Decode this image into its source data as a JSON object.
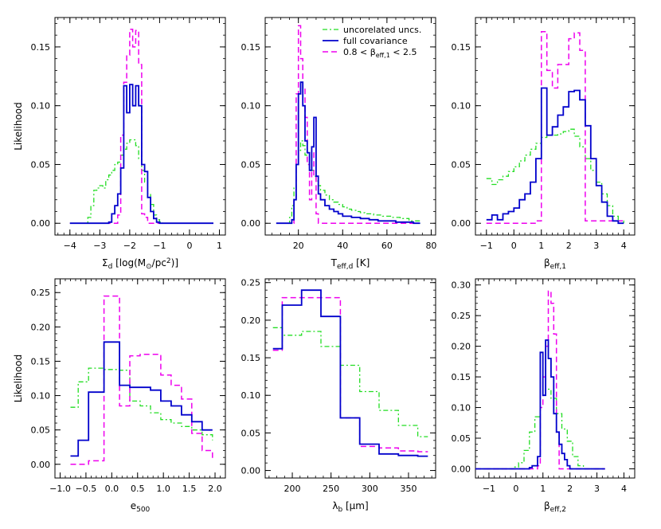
{
  "colors": {
    "uncorrelated": "#22dd22",
    "full": "#0000cc",
    "restricted": "#ee00ee"
  },
  "legend": {
    "entries": [
      {
        "key": "uncorrelated",
        "label": "uncorelated uncs."
      },
      {
        "key": "full",
        "label": "full covariance"
      },
      {
        "key": "restricted",
        "label": "0.8 < β_eff,1 < 2.5"
      }
    ]
  },
  "chart_data": [
    {
      "type": "line",
      "panel": "Sigma_d",
      "xlabel": "Σd [log(M⊙/pc²)]",
      "ylabel": "Likelihood",
      "xlim": [
        -4.5,
        1.2
      ],
      "ylim": [
        -0.01,
        0.175
      ],
      "xticks": [
        -4,
        -3,
        -2,
        -1,
        0,
        1
      ],
      "yticks": [
        0.0,
        0.05,
        0.1,
        0.15
      ],
      "ytick_labels": [
        "0.00",
        "0.05",
        "0.10",
        "0.15"
      ],
      "series": [
        {
          "key": "uncorrelated",
          "x": [
            -4.0,
            -3.4,
            -3.3,
            -3.2,
            -3.1,
            -3.0,
            -2.9,
            -2.8,
            -2.7,
            -2.6,
            -2.5,
            -2.4,
            -2.3,
            -2.2,
            -2.1,
            -2.0,
            -1.9,
            -1.8,
            -1.7,
            -1.6,
            -1.5,
            -1.4,
            -1.3,
            -1.2,
            -1.1,
            -1.0,
            -0.9,
            0.8
          ],
          "y": [
            0.0,
            0.005,
            0.015,
            0.028,
            0.03,
            0.032,
            0.03,
            0.037,
            0.041,
            0.045,
            0.05,
            0.052,
            0.058,
            0.063,
            0.068,
            0.071,
            0.071,
            0.066,
            0.055,
            0.045,
            0.035,
            0.025,
            0.016,
            0.007,
            0.003,
            0.001,
            0.0,
            0.0
          ]
        },
        {
          "key": "full",
          "x": [
            -4.0,
            -2.7,
            -2.6,
            -2.5,
            -2.4,
            -2.3,
            -2.2,
            -2.1,
            -2.0,
            -1.9,
            -1.8,
            -1.7,
            -1.6,
            -1.5,
            -1.4,
            -1.3,
            -1.2,
            -1.1,
            -1.0,
            0.8
          ],
          "y": [
            0.0,
            0.001,
            0.008,
            0.015,
            0.025,
            0.047,
            0.117,
            0.094,
            0.118,
            0.1,
            0.117,
            0.1,
            0.05,
            0.044,
            0.022,
            0.01,
            0.004,
            0.001,
            0.0,
            0.0
          ]
        },
        {
          "key": "restricted",
          "x": [
            -4.0,
            -2.4,
            -2.3,
            -2.2,
            -2.1,
            -2.0,
            -1.9,
            -1.8,
            -1.7,
            -1.6,
            -1.5,
            -1.4,
            0.8
          ],
          "y": [
            0.0,
            0.007,
            0.075,
            0.12,
            0.143,
            0.165,
            0.15,
            0.164,
            0.135,
            0.008,
            0.005,
            0.0,
            0.0
          ]
        }
      ]
    },
    {
      "type": "line",
      "panel": "T_eff_d",
      "xlabel": "Teff,d [K]",
      "ylabel": "",
      "xlim": [
        5,
        82
      ],
      "ylim": [
        -0.01,
        0.175
      ],
      "xticks": [
        20,
        40,
        60,
        80
      ],
      "yticks": [
        0.0,
        0.05,
        0.1,
        0.15
      ],
      "ytick_labels": [
        "0.00",
        "0.05",
        "0.10",
        "0.15"
      ],
      "series": [
        {
          "key": "uncorrelated",
          "x": [
            10,
            16,
            17,
            18,
            19,
            20,
            21,
            22,
            23,
            24,
            25,
            26,
            27,
            28,
            29,
            30,
            32,
            34,
            36,
            38,
            40,
            42,
            44,
            46,
            48,
            50,
            54,
            58,
            62,
            66,
            70,
            75
          ],
          "y": [
            0.0,
            0.005,
            0.015,
            0.03,
            0.05,
            0.062,
            0.07,
            0.066,
            0.058,
            0.055,
            0.05,
            0.045,
            0.04,
            0.036,
            0.032,
            0.028,
            0.024,
            0.02,
            0.018,
            0.016,
            0.014,
            0.012,
            0.011,
            0.01,
            0.009,
            0.008,
            0.007,
            0.006,
            0.005,
            0.004,
            0.002,
            0.0
          ]
        },
        {
          "key": "full",
          "x": [
            10,
            17,
            18,
            19,
            20,
            21,
            22,
            23,
            24,
            25,
            26,
            27,
            28,
            29,
            30,
            32,
            34,
            36,
            38,
            40,
            44,
            48,
            52,
            56,
            60,
            64,
            68,
            72,
            75
          ],
          "y": [
            0.0,
            0.003,
            0.02,
            0.05,
            0.11,
            0.12,
            0.1,
            0.07,
            0.06,
            0.045,
            0.065,
            0.09,
            0.04,
            0.025,
            0.02,
            0.015,
            0.012,
            0.01,
            0.008,
            0.006,
            0.005,
            0.004,
            0.003,
            0.002,
            0.002,
            0.001,
            0.001,
            0.0,
            0.0
          ]
        },
        {
          "key": "restricted",
          "x": [
            10,
            18,
            19,
            20,
            21,
            22,
            23,
            24,
            25,
            26,
            27,
            28,
            29,
            75
          ],
          "y": [
            0.0,
            0.02,
            0.11,
            0.168,
            0.14,
            0.115,
            0.09,
            0.05,
            0.02,
            0.06,
            0.04,
            0.008,
            0.0,
            0.0
          ]
        }
      ]
    },
    {
      "type": "line",
      "panel": "beta_eff_1",
      "xlabel": "βeff,1",
      "ylabel": "",
      "xlim": [
        -1.4,
        4.4
      ],
      "ylim": [
        -0.01,
        0.175
      ],
      "xticks": [
        -1,
        0,
        1,
        2,
        3,
        4
      ],
      "yticks": [
        0.0,
        0.05,
        0.1,
        0.15
      ],
      "ytick_labels": [
        "0.00",
        "0.05",
        "0.10",
        "0.15"
      ],
      "series": [
        {
          "key": "uncorrelated",
          "x": [
            -1.0,
            -0.8,
            -0.6,
            -0.4,
            -0.2,
            0.0,
            0.2,
            0.4,
            0.6,
            0.8,
            1.0,
            1.2,
            1.4,
            1.6,
            1.8,
            2.0,
            2.2,
            2.4,
            2.6,
            2.8,
            3.0,
            3.2,
            3.4,
            3.6,
            3.8,
            4.0
          ],
          "y": [
            0.038,
            0.033,
            0.037,
            0.04,
            0.044,
            0.048,
            0.053,
            0.058,
            0.063,
            0.068,
            0.073,
            0.075,
            0.075,
            0.076,
            0.078,
            0.08,
            0.074,
            0.065,
            0.055,
            0.045,
            0.035,
            0.025,
            0.015,
            0.006,
            0.002,
            0.0
          ]
        },
        {
          "key": "full",
          "x": [
            -1.0,
            -0.8,
            -0.6,
            -0.4,
            -0.2,
            0.0,
            0.2,
            0.4,
            0.6,
            0.8,
            1.0,
            1.2,
            1.4,
            1.6,
            1.8,
            2.0,
            2.2,
            2.4,
            2.6,
            2.8,
            3.0,
            3.2,
            3.4,
            3.6,
            3.8,
            4.0
          ],
          "y": [
            0.003,
            0.007,
            0.003,
            0.008,
            0.01,
            0.013,
            0.02,
            0.025,
            0.035,
            0.055,
            0.115,
            0.075,
            0.082,
            0.092,
            0.099,
            0.112,
            0.113,
            0.105,
            0.083,
            0.055,
            0.032,
            0.018,
            0.006,
            0.002,
            0.0,
            0.0
          ]
        },
        {
          "key": "restricted",
          "x": [
            -1.0,
            0.6,
            0.8,
            1.0,
            1.2,
            1.4,
            1.6,
            1.8,
            2.0,
            2.2,
            2.4,
            2.6,
            4.0
          ],
          "y": [
            0.0,
            0.0,
            0.002,
            0.163,
            0.13,
            0.115,
            0.135,
            0.135,
            0.157,
            0.162,
            0.147,
            0.002,
            0.0
          ]
        }
      ]
    },
    {
      "type": "line",
      "panel": "e_500",
      "xlabel": "e500",
      "ylabel": "Likelihood",
      "xlim": [
        -1.1,
        2.2
      ],
      "ylim": [
        -0.02,
        0.27
      ],
      "xticks": [
        -1.0,
        -0.5,
        0.0,
        0.5,
        1.0,
        1.5,
        2.0
      ],
      "xtick_labels": [
        "−1.0",
        "−0.5",
        "0.0",
        "0.5",
        "1.0",
        "1.5",
        "2.0"
      ],
      "yticks": [
        0.0,
        0.05,
        0.1,
        0.15,
        0.2,
        0.25
      ],
      "ytick_labels": [
        "0.00",
        "0.05",
        "0.10",
        "0.15",
        "0.20",
        "0.25"
      ],
      "series": [
        {
          "key": "uncorrelated",
          "x": [
            -0.8,
            -0.65,
            -0.45,
            -0.15,
            0.15,
            0.35,
            0.55,
            0.75,
            0.95,
            1.15,
            1.35,
            1.55,
            1.75,
            1.95
          ],
          "y": [
            0.083,
            0.12,
            0.14,
            0.138,
            0.137,
            0.092,
            0.085,
            0.075,
            0.065,
            0.06,
            0.055,
            0.05,
            0.043,
            0.035
          ]
        },
        {
          "key": "full",
          "x": [
            -0.8,
            -0.65,
            -0.45,
            -0.15,
            0.15,
            0.35,
            0.55,
            0.75,
            0.95,
            1.15,
            1.35,
            1.55,
            1.75,
            1.95
          ],
          "y": [
            0.012,
            0.035,
            0.105,
            0.178,
            0.115,
            0.112,
            0.112,
            0.108,
            0.092,
            0.085,
            0.072,
            0.062,
            0.05,
            0.05
          ]
        },
        {
          "key": "restricted",
          "x": [
            -0.8,
            -0.65,
            -0.45,
            -0.15,
            0.15,
            0.35,
            0.55,
            0.75,
            0.95,
            1.15,
            1.35,
            1.55,
            1.75,
            1.95
          ],
          "y": [
            0.0,
            0.0,
            0.005,
            0.245,
            0.085,
            0.158,
            0.16,
            0.16,
            0.13,
            0.115,
            0.095,
            0.045,
            0.02,
            0.008
          ]
        }
      ]
    },
    {
      "type": "line",
      "panel": "lambda_b",
      "xlabel": "λb [μm]",
      "ylabel": "",
      "xlim": [
        165,
        385
      ],
      "ylim": [
        -0.01,
        0.255
      ],
      "xticks": [
        200,
        250,
        300,
        350
      ],
      "yticks": [
        0.0,
        0.05,
        0.1,
        0.15,
        0.2,
        0.25
      ],
      "ytick_labels": [
        "0.00",
        "0.05",
        "0.10",
        "0.15",
        "0.20",
        "0.25"
      ],
      "series": [
        {
          "key": "uncorrelated",
          "x": [
            175,
            187,
            212,
            237,
            262,
            287,
            312,
            337,
            362,
            375
          ],
          "y": [
            0.19,
            0.18,
            0.185,
            0.165,
            0.14,
            0.105,
            0.08,
            0.06,
            0.045,
            0.045
          ]
        },
        {
          "key": "full",
          "x": [
            175,
            187,
            212,
            237,
            262,
            287,
            312,
            337,
            362,
            375
          ],
          "y": [
            0.162,
            0.22,
            0.24,
            0.205,
            0.07,
            0.035,
            0.022,
            0.02,
            0.019,
            0.019
          ]
        },
        {
          "key": "restricted",
          "x": [
            175,
            187,
            212,
            237,
            262,
            287,
            312,
            337,
            362,
            375
          ],
          "y": [
            0.16,
            0.23,
            0.23,
            0.23,
            0.07,
            0.032,
            0.03,
            0.026,
            0.025,
            0.025
          ]
        }
      ]
    },
    {
      "type": "line",
      "panel": "beta_eff_2",
      "xlabel": "βeff,2",
      "ylabel": "",
      "xlim": [
        -1.5,
        4.4
      ],
      "ylim": [
        -0.015,
        0.31
      ],
      "xticks": [
        -1,
        0,
        1,
        2,
        3,
        4
      ],
      "yticks": [
        0.0,
        0.05,
        0.1,
        0.15,
        0.2,
        0.25,
        0.3
      ],
      "ytick_labels": [
        "0.00",
        "0.05",
        "0.10",
        "0.15",
        "0.20",
        "0.25",
        "0.30"
      ],
      "series": [
        {
          "key": "uncorrelated",
          "x": [
            -1.5,
            -0.1,
            0.1,
            0.3,
            0.5,
            0.7,
            0.9,
            1.1,
            1.3,
            1.5,
            1.7,
            1.9,
            2.1,
            2.3,
            2.5,
            3.3
          ],
          "y": [
            0.0,
            0.003,
            0.01,
            0.03,
            0.06,
            0.085,
            0.12,
            0.13,
            0.115,
            0.09,
            0.065,
            0.045,
            0.02,
            0.005,
            0.0,
            0.0
          ]
        },
        {
          "key": "full",
          "x": [
            -1.5,
            0.5,
            0.6,
            0.8,
            0.9,
            1.0,
            1.1,
            1.2,
            1.3,
            1.4,
            1.5,
            1.6,
            1.7,
            1.8,
            1.9,
            2.0,
            3.3
          ],
          "y": [
            0.0,
            0.002,
            0.005,
            0.02,
            0.19,
            0.12,
            0.21,
            0.18,
            0.15,
            0.09,
            0.06,
            0.04,
            0.025,
            0.015,
            0.005,
            0.0,
            0.0
          ]
        },
        {
          "key": "restricted",
          "x": [
            -1.5,
            0.6,
            0.8,
            0.9,
            1.0,
            1.1,
            1.2,
            1.3,
            1.4,
            1.5,
            1.6,
            3.3
          ],
          "y": [
            0.0,
            0.0,
            0.005,
            0.1,
            0.15,
            0.2,
            0.29,
            0.27,
            0.22,
            0.06,
            0.0,
            0.0
          ]
        }
      ]
    }
  ]
}
